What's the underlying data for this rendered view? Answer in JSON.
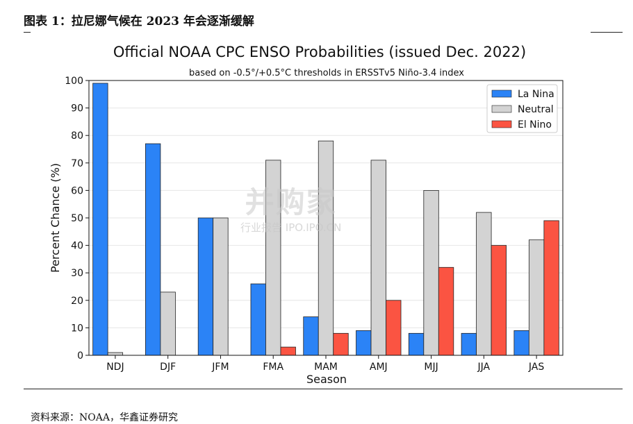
{
  "caption": "图表 1：拉尼娜气候在 2023 年会逐渐缓解",
  "source": "资料来源：NOAA，华鑫证券研究",
  "watermark": {
    "main": "并购家",
    "sub": "行业报告 IPO.IPO.CN"
  },
  "chart_data": {
    "type": "bar",
    "title": "Official NOAA CPC ENSO Probabilities (issued Dec. 2022)",
    "subtitle": "based on -0.5°/+0.5°C thresholds in ERSSTv5 Niño-3.4 index",
    "xlabel": "Season",
    "ylabel": "Percent Chance (%)",
    "ylim": [
      0,
      100
    ],
    "yticks": [
      0,
      10,
      20,
      30,
      40,
      50,
      60,
      70,
      80,
      90,
      100
    ],
    "grid": true,
    "legend": "top-right",
    "categories": [
      "NDJ",
      "DJF",
      "JFM",
      "FMA",
      "MAM",
      "AMJ",
      "MJJ",
      "JJA",
      "JAS"
    ],
    "series": [
      {
        "name": "La Nina",
        "color": "#2b83f6",
        "values": [
          99,
          77,
          50,
          26,
          14,
          9,
          8,
          8,
          9
        ]
      },
      {
        "name": "Neutral",
        "color": "#d3d3d3",
        "values": [
          1,
          23,
          50,
          71,
          78,
          71,
          60,
          52,
          42
        ]
      },
      {
        "name": "El Nino",
        "color": "#fb5442",
        "values": [
          0,
          0,
          0,
          3,
          8,
          20,
          32,
          40,
          49
        ]
      }
    ]
  }
}
